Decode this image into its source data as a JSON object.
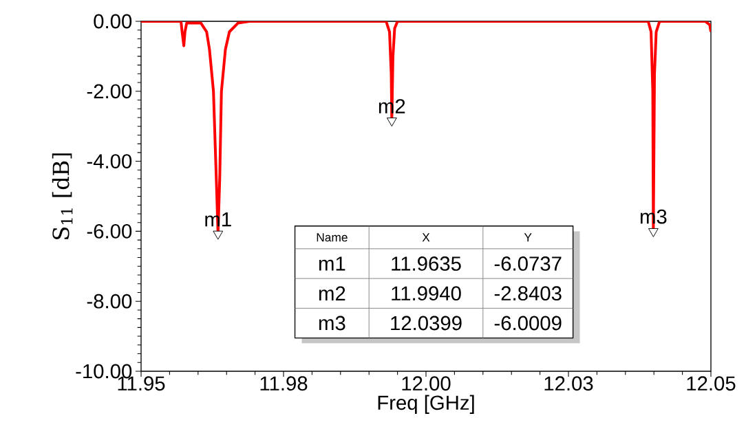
{
  "chart_data": {
    "type": "line",
    "xlabel": "Freq [GHz]",
    "ylabel": "S$_{11}$ [dB]",
    "x": [
      11.95,
      11.957,
      11.9572,
      11.9575,
      11.9577,
      11.958,
      11.9605,
      11.9615,
      11.962,
      11.9627,
      11.963,
      11.9633,
      11.9635,
      11.9638,
      11.9641,
      11.9648,
      11.9655,
      11.967,
      11.969,
      11.993,
      11.9936,
      11.9939,
      11.994,
      11.9942,
      11.9945,
      11.995,
      12.039,
      12.0395,
      12.0398,
      12.0399,
      12.0401,
      12.0404,
      12.041,
      12.049,
      12.0498,
      12.05
    ],
    "series": [
      {
        "color": "#ff0000",
        "values": [
          0,
          0,
          -0.3,
          -0.7,
          -0.3,
          -0.05,
          -0.05,
          -0.3,
          -0.8,
          -2.0,
          -3.5,
          -5.0,
          -6.0737,
          -4.5,
          -2.0,
          -0.8,
          -0.3,
          -0.05,
          0,
          0,
          -0.3,
          -1.5,
          -2.8403,
          -1.0,
          -0.2,
          0,
          0,
          -0.3,
          -2.0,
          -6.0009,
          -1.5,
          -0.3,
          0,
          0,
          -0.1,
          -0.3
        ]
      },
      {
        "type": "scatter",
        "marker": "triangle",
        "color": "#ffffff",
        "x": [
          11.9635,
          11.994,
          12.0399
        ],
        "values": [
          -6.0737,
          -2.8403,
          -6.0009
        ]
      }
    ],
    "xlim": [
      11.95,
      12.05
    ],
    "xticks": [
      {
        "value": 11.95,
        "label": "11.95"
      },
      {
        "value": 11.975,
        "label": "11.98"
      },
      {
        "value": 12.0,
        "label": "12.00"
      },
      {
        "value": 12.025,
        "label": "12.03"
      },
      {
        "value": 12.05,
        "label": "12.05"
      }
    ],
    "ylim": [
      -10,
      0
    ],
    "yticks": [
      {
        "value": -10,
        "label": "-10.00"
      },
      {
        "value": -8,
        "label": "-8.00"
      },
      {
        "value": -6,
        "label": "-6.00"
      },
      {
        "value": -4,
        "label": "-4.00"
      },
      {
        "value": -2,
        "label": "-2.00"
      },
      {
        "value": 0,
        "label": "0.00"
      }
    ],
    "marker": "none",
    "line_style": "solid",
    "annotations": [
      {
        "text": "m1",
        "x": 11.9635,
        "y": -6.0737
      },
      {
        "text": "m2",
        "x": 11.994,
        "y": -2.8403
      },
      {
        "text": "m3",
        "x": 12.0399,
        "y": -6.0009
      },
      "Name",
      "X",
      "Y",
      "m1",
      "11.9635",
      "-6.0737",
      "m2",
      "11.9940",
      "-2.8403",
      "m3",
      "12.0399",
      "-6.0009"
    ]
  }
}
